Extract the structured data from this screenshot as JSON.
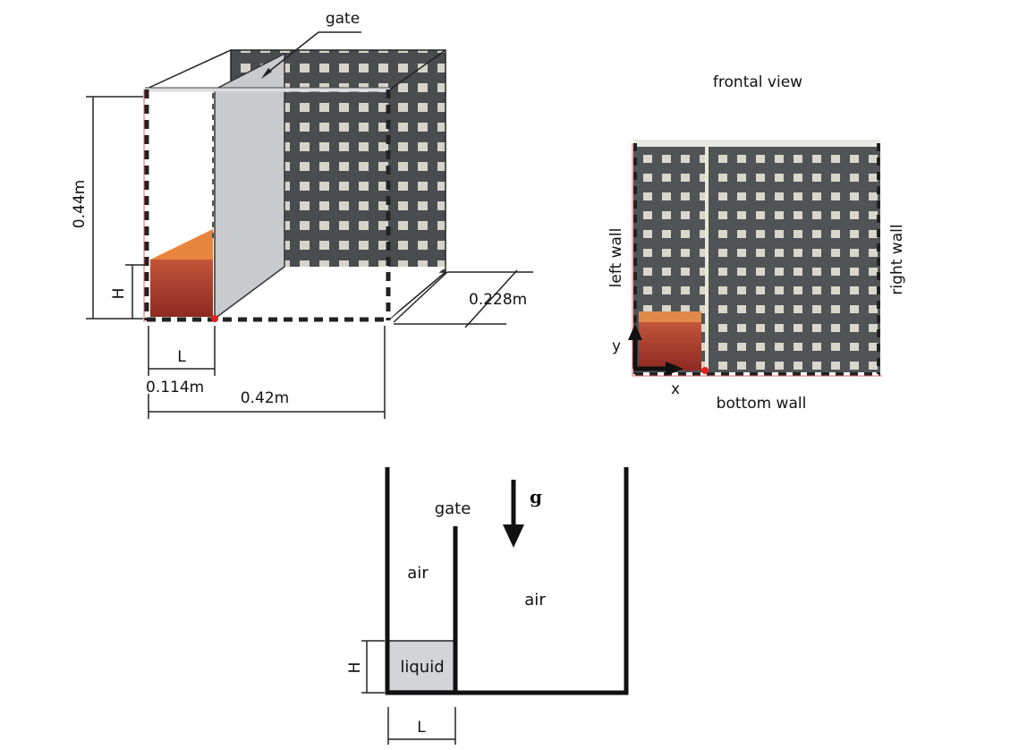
{
  "figure_3d": {
    "gate_label": "gate",
    "height_label": "0.44m",
    "h_label": "H",
    "depth_label": "0.228m",
    "l_label": "L",
    "l_value_label": "0.114m",
    "width_label": "0.42m"
  },
  "frontal_view": {
    "title": "frontal view",
    "left_wall_label": "left wall",
    "right_wall_label": "right wall",
    "bottom_wall_label": "bottom wall",
    "x_axis_label": "x",
    "y_axis_label": "y"
  },
  "schematic": {
    "gate_label": "gate",
    "gravity_label": "g",
    "air_left_label": "air",
    "air_right_label": "air",
    "liquid_label": "liquid",
    "h_label": "H",
    "l_label": "L"
  },
  "colors": {
    "liquid_fill": "#d2d4d8",
    "water_red": "#a5362a",
    "water_orange": "#e8853c",
    "panel_grey": "#c8cacd",
    "mesh_dark": "#4a4c4e"
  }
}
